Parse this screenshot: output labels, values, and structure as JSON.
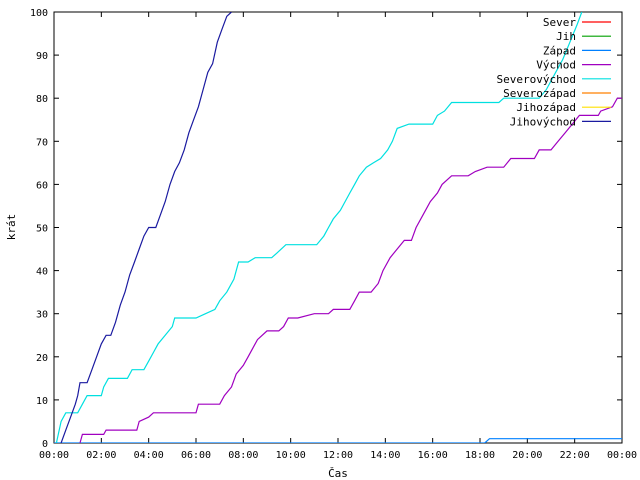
{
  "chart_data": {
    "type": "line",
    "xlabel": "Čas",
    "ylabel": "krát",
    "xlim": [
      0,
      24
    ],
    "ylim": [
      0,
      100
    ],
    "x_tick_labels": [
      "00:00",
      "02:00",
      "04:00",
      "06:00",
      "08:00",
      "10:00",
      "12:00",
      "14:00",
      "16:00",
      "18:00",
      "20:00",
      "22:00",
      "00:00"
    ],
    "y_tick_labels": [
      "0",
      "10",
      "20",
      "30",
      "40",
      "50",
      "60",
      "70",
      "80",
      "90",
      "100"
    ],
    "legend_position": "top-right",
    "grid": false,
    "series": [
      {
        "name": "Sever",
        "color": "#ff0000",
        "points": []
      },
      {
        "name": "Jih",
        "color": "#00a000",
        "points": []
      },
      {
        "name": "Západ",
        "color": "#0080ff",
        "points": [
          [
            0,
            0
          ],
          [
            17.9,
            0
          ],
          [
            18.2,
            0
          ],
          [
            18.4,
            1
          ],
          [
            24,
            1
          ]
        ]
      },
      {
        "name": "Východ",
        "color": "#a000c0",
        "points": [
          [
            1.1,
            0
          ],
          [
            1.2,
            2
          ],
          [
            2.1,
            2
          ],
          [
            2.2,
            3
          ],
          [
            3.5,
            3
          ],
          [
            3.6,
            5
          ],
          [
            4.0,
            6
          ],
          [
            4.2,
            7
          ],
          [
            6.0,
            7
          ],
          [
            6.1,
            9
          ],
          [
            7.0,
            9
          ],
          [
            7.2,
            11
          ],
          [
            7.5,
            13
          ],
          [
            7.7,
            16
          ],
          [
            8.0,
            18
          ],
          [
            8.2,
            20
          ],
          [
            8.4,
            22
          ],
          [
            8.6,
            24
          ],
          [
            9.0,
            26
          ],
          [
            9.5,
            26
          ],
          [
            9.7,
            27
          ],
          [
            9.9,
            29
          ],
          [
            10.3,
            29
          ],
          [
            11.0,
            30
          ],
          [
            11.6,
            30
          ],
          [
            11.8,
            31
          ],
          [
            12.5,
            31
          ],
          [
            12.7,
            33
          ],
          [
            12.9,
            35
          ],
          [
            13.4,
            35
          ],
          [
            13.7,
            37
          ],
          [
            13.9,
            40
          ],
          [
            14.2,
            43
          ],
          [
            14.5,
            45
          ],
          [
            14.8,
            47
          ],
          [
            15.1,
            47
          ],
          [
            15.3,
            50
          ],
          [
            15.6,
            53
          ],
          [
            15.9,
            56
          ],
          [
            16.2,
            58
          ],
          [
            16.4,
            60
          ],
          [
            16.8,
            62
          ],
          [
            17.5,
            62
          ],
          [
            17.8,
            63
          ],
          [
            18.3,
            64
          ],
          [
            19.0,
            64
          ],
          [
            19.3,
            66
          ],
          [
            20.3,
            66
          ],
          [
            20.5,
            68
          ],
          [
            21.0,
            68
          ],
          [
            21.3,
            70
          ],
          [
            21.6,
            72
          ],
          [
            21.9,
            74
          ],
          [
            22.2,
            76
          ],
          [
            23.0,
            76
          ],
          [
            23.1,
            77
          ],
          [
            23.6,
            78
          ],
          [
            23.8,
            80
          ],
          [
            24,
            80
          ]
        ]
      },
      {
        "name": "Severovýchod",
        "color": "#00e0e0",
        "points": [
          [
            0.1,
            0
          ],
          [
            0.3,
            5
          ],
          [
            0.5,
            7
          ],
          [
            1.0,
            7
          ],
          [
            1.2,
            9
          ],
          [
            1.4,
            11
          ],
          [
            2.0,
            11
          ],
          [
            2.1,
            13
          ],
          [
            2.3,
            15
          ],
          [
            3.1,
            15
          ],
          [
            3.3,
            17
          ],
          [
            3.8,
            17
          ],
          [
            4.0,
            19
          ],
          [
            4.2,
            21
          ],
          [
            4.4,
            23
          ],
          [
            4.7,
            25
          ],
          [
            5.0,
            27
          ],
          [
            5.1,
            29
          ],
          [
            6.0,
            29
          ],
          [
            6.4,
            30
          ],
          [
            6.8,
            31
          ],
          [
            7.0,
            33
          ],
          [
            7.3,
            35
          ],
          [
            7.6,
            38
          ],
          [
            7.8,
            42
          ],
          [
            8.2,
            42
          ],
          [
            8.5,
            43
          ],
          [
            9.2,
            43
          ],
          [
            9.4,
            44
          ],
          [
            9.8,
            46
          ],
          [
            11.1,
            46
          ],
          [
            11.4,
            48
          ],
          [
            11.6,
            50
          ],
          [
            11.8,
            52
          ],
          [
            12.1,
            54
          ],
          [
            12.3,
            56
          ],
          [
            12.5,
            58
          ],
          [
            12.7,
            60
          ],
          [
            12.9,
            62
          ],
          [
            13.2,
            64
          ],
          [
            13.5,
            65
          ],
          [
            13.8,
            66
          ],
          [
            14.1,
            68
          ],
          [
            14.3,
            70
          ],
          [
            14.5,
            73
          ],
          [
            15.0,
            74
          ],
          [
            16.0,
            74
          ],
          [
            16.2,
            76
          ],
          [
            16.5,
            77
          ],
          [
            16.8,
            79
          ],
          [
            18.8,
            79
          ],
          [
            19.0,
            80
          ],
          [
            20.5,
            80
          ],
          [
            20.8,
            82
          ],
          [
            21.2,
            86
          ],
          [
            21.5,
            89
          ],
          [
            21.8,
            93
          ],
          [
            22.1,
            97
          ],
          [
            22.3,
            100
          ]
        ]
      },
      {
        "name": "Severozápad",
        "color": "#ff8000",
        "points": []
      },
      {
        "name": "Jihozápad",
        "color": "#ffe000",
        "points": []
      },
      {
        "name": "Jihovýchod",
        "color": "#1a1aa0",
        "points": [
          [
            0.3,
            0
          ],
          [
            0.5,
            3
          ],
          [
            0.7,
            6
          ],
          [
            0.9,
            9
          ],
          [
            1.0,
            11
          ],
          [
            1.1,
            14
          ],
          [
            1.4,
            14
          ],
          [
            1.6,
            17
          ],
          [
            1.8,
            20
          ],
          [
            2.0,
            23
          ],
          [
            2.2,
            25
          ],
          [
            2.4,
            25
          ],
          [
            2.6,
            28
          ],
          [
            2.8,
            32
          ],
          [
            3.0,
            35
          ],
          [
            3.2,
            39
          ],
          [
            3.4,
            42
          ],
          [
            3.6,
            45
          ],
          [
            3.8,
            48
          ],
          [
            4.0,
            50
          ],
          [
            4.3,
            50
          ],
          [
            4.5,
            53
          ],
          [
            4.7,
            56
          ],
          [
            4.9,
            60
          ],
          [
            5.1,
            63
          ],
          [
            5.3,
            65
          ],
          [
            5.5,
            68
          ],
          [
            5.7,
            72
          ],
          [
            5.9,
            75
          ],
          [
            6.1,
            78
          ],
          [
            6.3,
            82
          ],
          [
            6.5,
            86
          ],
          [
            6.7,
            88
          ],
          [
            6.9,
            93
          ],
          [
            7.1,
            96
          ],
          [
            7.3,
            99
          ],
          [
            7.5,
            100
          ]
        ]
      }
    ]
  }
}
